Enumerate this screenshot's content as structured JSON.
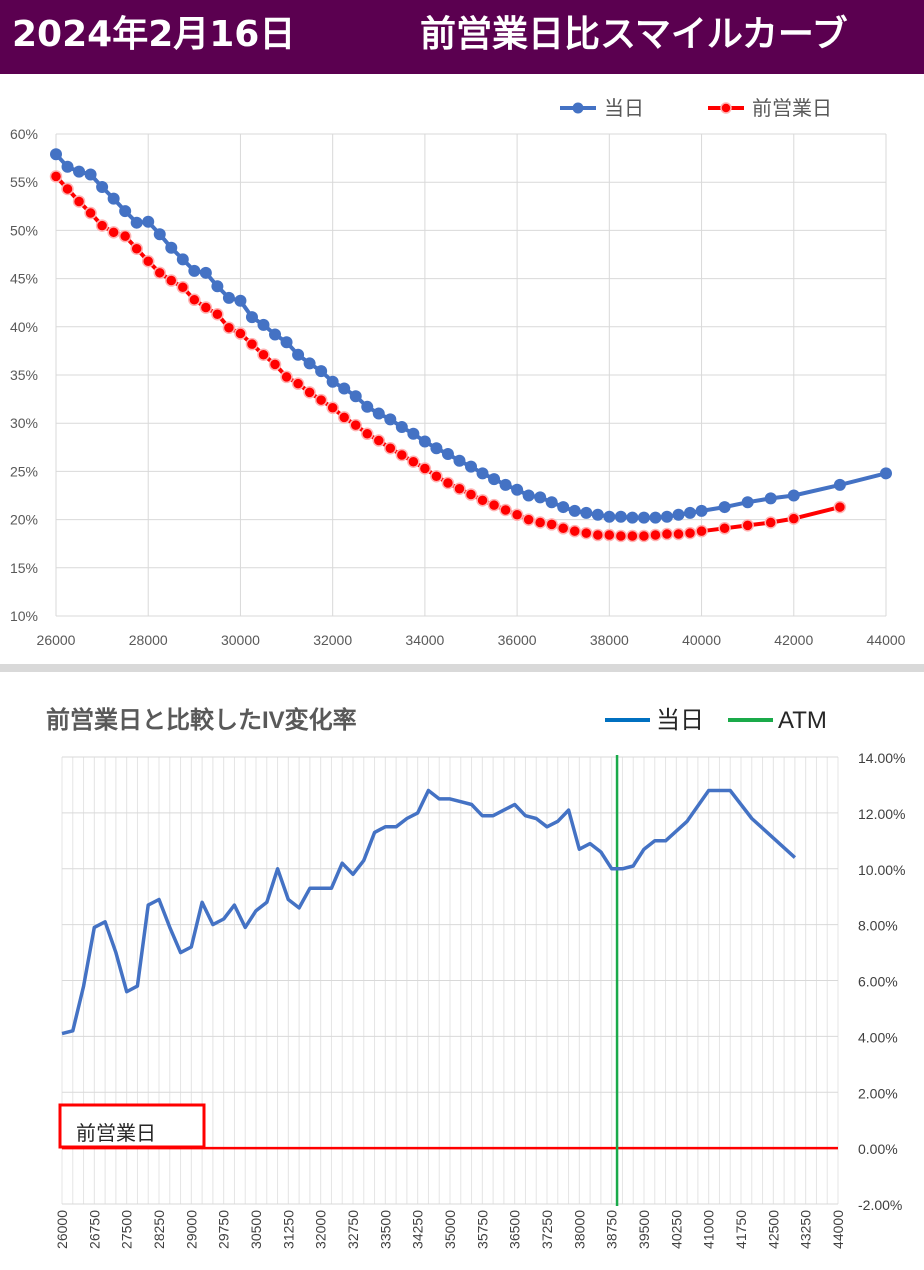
{
  "header": {
    "date": "2024年2月16日",
    "title": "前営業日比スマイルカーブ"
  },
  "colors": {
    "header_bg": "#5b0050",
    "today": "#4472c4",
    "prev": "#ff0000",
    "atm": "#1aaa4a",
    "grid": "#d9d9d9"
  },
  "chart_data": [
    {
      "type": "line",
      "title": "",
      "legend_position": "top-right",
      "grid": true,
      "xlim": [
        26000,
        44000
      ],
      "ylim": [
        10,
        60
      ],
      "x_ticks": [
        "26000",
        "28000",
        "30000",
        "32000",
        "34000",
        "36000",
        "38000",
        "40000",
        "42000",
        "44000"
      ],
      "y_ticks": [
        "10%",
        "15%",
        "20%",
        "25%",
        "30%",
        "35%",
        "40%",
        "45%",
        "50%",
        "55%",
        "60%"
      ],
      "series": [
        {
          "name": "当日",
          "color": "#4472c4",
          "x": [
            26000,
            26250,
            26500,
            26750,
            27000,
            27250,
            27500,
            27750,
            28000,
            28250,
            28500,
            28750,
            29000,
            29250,
            29500,
            29750,
            30000,
            30250,
            30500,
            30750,
            31000,
            31250,
            31500,
            31750,
            32000,
            32250,
            32500,
            32750,
            33000,
            33250,
            33500,
            33750,
            34000,
            34250,
            34500,
            34750,
            35000,
            35250,
            35500,
            35750,
            36000,
            36250,
            36500,
            36750,
            37000,
            37250,
            37500,
            37750,
            38000,
            38250,
            38500,
            38750,
            39000,
            39250,
            39500,
            39750,
            40000,
            40500,
            41000,
            41500,
            42000,
            43000,
            44000
          ],
          "y": [
            57.9,
            56.6,
            56.1,
            55.8,
            54.5,
            53.3,
            52.0,
            50.8,
            50.9,
            49.6,
            48.2,
            47.0,
            45.8,
            45.6,
            44.2,
            43.0,
            42.7,
            41.0,
            40.2,
            39.2,
            38.4,
            37.1,
            36.2,
            35.4,
            34.3,
            33.6,
            32.8,
            31.7,
            31.0,
            30.4,
            29.6,
            28.9,
            28.1,
            27.4,
            26.8,
            26.1,
            25.5,
            24.8,
            24.2,
            23.6,
            23.1,
            22.5,
            22.3,
            21.8,
            21.3,
            20.9,
            20.7,
            20.5,
            20.3,
            20.3,
            20.2,
            20.2,
            20.2,
            20.3,
            20.5,
            20.7,
            20.9,
            21.3,
            21.8,
            22.2,
            22.5,
            23.6,
            24.8
          ]
        },
        {
          "name": "前営業日",
          "color": "#ff0000",
          "x": [
            26000,
            26250,
            26500,
            26750,
            27000,
            27250,
            27500,
            27750,
            28000,
            28250,
            28500,
            28750,
            29000,
            29250,
            29500,
            29750,
            30000,
            30250,
            30500,
            30750,
            31000,
            31250,
            31500,
            31750,
            32000,
            32250,
            32500,
            32750,
            33000,
            33250,
            33500,
            33750,
            34000,
            34250,
            34500,
            34750,
            35000,
            35250,
            35500,
            35750,
            36000,
            36250,
            36500,
            36750,
            37000,
            37250,
            37500,
            37750,
            38000,
            38250,
            38500,
            38750,
            39000,
            39250,
            39500,
            39750,
            40000,
            40500,
            41000,
            41500,
            42000,
            43000
          ],
          "y": [
            55.6,
            54.3,
            53.0,
            51.8,
            50.5,
            49.8,
            49.4,
            48.1,
            46.8,
            45.6,
            44.8,
            44.1,
            42.8,
            42.0,
            41.3,
            39.9,
            39.3,
            38.2,
            37.1,
            36.1,
            34.8,
            34.1,
            33.2,
            32.4,
            31.6,
            30.6,
            29.8,
            28.9,
            28.2,
            27.4,
            26.7,
            26.0,
            25.3,
            24.5,
            23.8,
            23.2,
            22.6,
            22.0,
            21.5,
            21.0,
            20.5,
            20.0,
            19.7,
            19.5,
            19.1,
            18.8,
            18.6,
            18.4,
            18.4,
            18.3,
            18.3,
            18.3,
            18.4,
            18.5,
            18.5,
            18.6,
            18.8,
            19.1,
            19.4,
            19.7,
            20.1,
            21.3
          ]
        }
      ]
    },
    {
      "type": "line",
      "title": "前営業日と比較したIV変化率",
      "legend_position": "top-right",
      "grid": true,
      "ylim": [
        -2,
        14
      ],
      "y_ticks": [
        "14.00%",
        "12.00%",
        "10.00%",
        "8.00%",
        "6.00%",
        "4.00%",
        "2.00%",
        "0.00%",
        "-2.00%"
      ],
      "x_ticks": [
        "26000",
        "26750",
        "27500",
        "28250",
        "29000",
        "29750",
        "30500",
        "31250",
        "32000",
        "32750",
        "33500",
        "34250",
        "35000",
        "35750",
        "36500",
        "37250",
        "38000",
        "38750",
        "39500",
        "40250",
        "41000",
        "41750",
        "42500",
        "43250",
        "44000"
      ],
      "xlim": [
        26000,
        44000
      ],
      "atm": 38875,
      "atm_label": "ATM",
      "zero_line_label": "前営業日",
      "series": [
        {
          "name": "当日",
          "color": "#4472c4",
          "x": [
            26000,
            26250,
            26500,
            26750,
            27000,
            27250,
            27500,
            27750,
            28000,
            28250,
            28500,
            28750,
            29000,
            29250,
            29500,
            29750,
            30000,
            30250,
            30500,
            30750,
            31000,
            31250,
            31500,
            31750,
            32000,
            32250,
            32500,
            32750,
            33000,
            33250,
            33500,
            33750,
            34000,
            34250,
            34500,
            34750,
            35000,
            35250,
            35500,
            35750,
            36000,
            36250,
            36500,
            36750,
            37000,
            37250,
            37500,
            37750,
            38000,
            38250,
            38500,
            38750,
            39000,
            39250,
            39500,
            39750,
            40000,
            40500,
            41000,
            41500,
            42000,
            43000
          ],
          "y": [
            4.1,
            4.2,
            5.8,
            7.9,
            8.1,
            7.0,
            5.6,
            5.8,
            8.7,
            8.9,
            7.9,
            7.0,
            7.2,
            8.8,
            8.0,
            8.2,
            8.7,
            7.9,
            8.5,
            8.8,
            10.0,
            8.9,
            8.6,
            9.3,
            9.3,
            9.3,
            10.2,
            9.8,
            10.3,
            11.3,
            11.5,
            11.5,
            11.8,
            12.0,
            12.8,
            12.5,
            12.5,
            12.4,
            12.3,
            11.9,
            11.9,
            12.1,
            12.3,
            11.9,
            11.8,
            11.5,
            11.7,
            12.1,
            10.7,
            10.9,
            10.6,
            10.0,
            10.0,
            10.1,
            10.7,
            11.0,
            11.0,
            11.7,
            12.8,
            12.8,
            11.8,
            10.4
          ]
        },
        {
          "name": "前営業日",
          "color": "#ff0000",
          "x": [
            26000,
            44000
          ],
          "y": [
            0,
            0
          ]
        }
      ]
    }
  ]
}
